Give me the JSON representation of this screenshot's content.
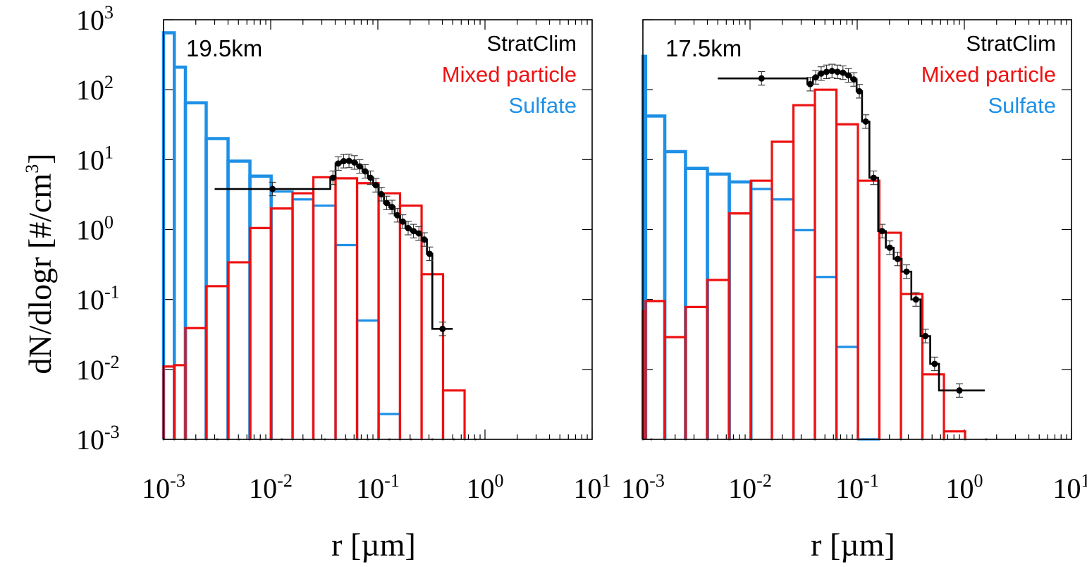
{
  "figure": {
    "ylabel": "dN/dlogr [#/cm",
    "ylabel_sup": "3",
    "ylabel_end": "]",
    "xlabel": "r [µm]",
    "y_ticks": [
      {
        "base": "10",
        "exp": "-3",
        "value": -3
      },
      {
        "base": "10",
        "exp": "-2",
        "value": -2
      },
      {
        "base": "10",
        "exp": "-1",
        "value": -1
      },
      {
        "base": "10",
        "exp": "0",
        "value": 0
      },
      {
        "base": "10",
        "exp": "1",
        "value": 1
      },
      {
        "base": "10",
        "exp": "2",
        "value": 2
      },
      {
        "base": "10",
        "exp": "3",
        "value": 3
      }
    ],
    "x_ticks": [
      {
        "base": "10",
        "exp": "-3",
        "value": -3
      },
      {
        "base": "10",
        "exp": "-2",
        "value": -2
      },
      {
        "base": "10",
        "exp": "-1",
        "value": -1
      },
      {
        "base": "10",
        "exp": "0",
        "value": 0
      },
      {
        "base": "10",
        "exp": "1",
        "value": 1
      }
    ],
    "colors": {
      "stratclim": "#000000",
      "mixed": "#ee1111",
      "sulfate": "#1e90e6"
    }
  },
  "chart_data": [
    {
      "type": "bar",
      "panel_label": "19.5km",
      "x_scale": "log",
      "y_scale": "log",
      "xlim": [
        0.001,
        10
      ],
      "ylim": [
        0.001,
        1000
      ],
      "legend_position": "top-right",
      "legend": [
        {
          "label": "StratClim",
          "color": "#000000"
        },
        {
          "label": "Mixed particle",
          "color": "#ee1111"
        },
        {
          "label": "Sulfate",
          "color": "#1e90e6"
        }
      ],
      "bin_edges": [
        0.001,
        0.00126,
        0.00159,
        0.002,
        0.00252,
        0.00317,
        0.004,
        0.00504,
        0.00635,
        0.008,
        0.01008,
        0.0127,
        0.016,
        0.02016,
        0.0254,
        0.032,
        0.0403,
        0.0508,
        0.064,
        0.0806,
        0.1016,
        0.128,
        0.1613,
        0.2032,
        0.256,
        0.3225,
        0.4064,
        0.512,
        0.645,
        0.8128
      ],
      "series": [
        {
          "name": "Sulfate",
          "style": "histogram",
          "edges": [
            0.001,
            0.00126,
            0.0016,
            0.0025,
            0.004,
            0.0064,
            0.0101,
            0.016,
            0.025,
            0.0403,
            0.064,
            0.1016,
            0.161
          ],
          "values": [
            650,
            210,
            65,
            20,
            9.5,
            5.8,
            3.5,
            2.7,
            2.2,
            0.6,
            0.05,
            0.0023
          ]
        },
        {
          "name": "Mixed particle",
          "style": "histogram",
          "edges": [
            0.001,
            0.00126,
            0.0016,
            0.0025,
            0.004,
            0.0064,
            0.0101,
            0.016,
            0.025,
            0.0403,
            0.064,
            0.1016,
            0.161,
            0.256,
            0.406,
            0.645
          ],
          "values": [
            0.011,
            0.0115,
            0.039,
            0.155,
            0.34,
            1.05,
            2.0,
            3.3,
            5.6,
            5.4,
            4.6,
            3.3,
            2.2,
            0.23,
            0.005
          ]
        },
        {
          "name": "StratClim",
          "style": "step-with-errorbars",
          "edges": [
            0.003,
            0.036,
            0.0403,
            0.0453,
            0.0508,
            0.057,
            0.064,
            0.0718,
            0.0806,
            0.0905,
            0.1016,
            0.114,
            0.128,
            0.1437,
            0.1613,
            0.181,
            0.2032,
            0.228,
            0.256,
            0.287,
            0.3225,
            0.5
          ],
          "centers": [
            0.0104,
            0.0381,
            0.0427,
            0.048,
            0.0538,
            0.0604,
            0.0678,
            0.0761,
            0.0854,
            0.0959,
            0.1076,
            0.1208,
            0.1356,
            0.1522,
            0.1709,
            0.1918,
            0.2152,
            0.2416,
            0.2712,
            0.3044,
            0.4016
          ],
          "values": [
            3.8,
            5.5,
            8.8,
            9.5,
            9.6,
            9.1,
            8.0,
            6.8,
            5.5,
            4.3,
            3.2,
            2.4,
            2.1,
            1.6,
            1.3,
            1.05,
            0.95,
            0.88,
            0.72,
            0.45,
            0.038
          ],
          "err_factor": 1.25
        }
      ]
    },
    {
      "type": "bar",
      "panel_label": "17.5km",
      "x_scale": "log",
      "y_scale": "log",
      "xlim": [
        0.001,
        10
      ],
      "ylim": [
        0.001,
        1000
      ],
      "legend_position": "top-right",
      "legend": [
        {
          "label": "StratClim",
          "color": "#000000"
        },
        {
          "label": "Mixed particle",
          "color": "#ee1111"
        },
        {
          "label": "Sulfate",
          "color": "#1e90e6"
        }
      ],
      "bin_edges": [
        0.001,
        0.0012,
        0.0016,
        0.0025,
        0.004,
        0.0064,
        0.0102,
        0.016,
        0.0254,
        0.0403,
        0.064,
        0.1016,
        0.161,
        0.256,
        0.406,
        0.645,
        1.016,
        1.6
      ],
      "series": [
        {
          "name": "Sulfate",
          "style": "histogram",
          "edges": [
            0.001,
            0.00106,
            0.0016,
            0.0025,
            0.004,
            0.0064,
            0.0102,
            0.016,
            0.0254,
            0.0403,
            0.064,
            0.1016,
            0.161
          ],
          "values": [
            300,
            42,
            13,
            7.5,
            6.2,
            4.8,
            3.8,
            2.7,
            0.98,
            0.21,
            0.021,
            0.001
          ]
        },
        {
          "name": "Mixed particle",
          "style": "histogram",
          "edges": [
            0.001,
            0.00106,
            0.0016,
            0.0025,
            0.004,
            0.0064,
            0.0102,
            0.016,
            0.0254,
            0.0403,
            0.064,
            0.1016,
            0.161,
            0.256,
            0.406,
            0.645,
            1.016
          ],
          "values": [
            0.067,
            0.095,
            0.029,
            0.078,
            0.19,
            1.7,
            5.0,
            18,
            60,
            100,
            32,
            5.0,
            0.9,
            0.12,
            0.0085,
            0.0013
          ]
        },
        {
          "name": "StratClim",
          "style": "step-with-errorbars",
          "edges": [
            0.005,
            0.0343,
            0.0386,
            0.0434,
            0.0488,
            0.0549,
            0.0617,
            0.0694,
            0.0781,
            0.0878,
            0.0988,
            0.111,
            0.13,
            0.157,
            0.185,
            0.219,
            0.26,
            0.32,
            0.39,
            0.48,
            0.58,
            1.55
          ],
          "centers": [
            0.0128,
            0.0364,
            0.041,
            0.0461,
            0.0518,
            0.0582,
            0.0654,
            0.0736,
            0.0828,
            0.0931,
            0.1047,
            0.1201,
            0.1425,
            0.1707,
            0.2013,
            0.2388,
            0.2887,
            0.3533,
            0.4327,
            0.5283,
            0.9
          ],
          "values": [
            145,
            120,
            150,
            170,
            180,
            185,
            180,
            175,
            160,
            140,
            95,
            35,
            5.5,
            0.95,
            0.55,
            0.38,
            0.25,
            0.1,
            0.03,
            0.012,
            0.005
          ],
          "err_factor": 1.25
        }
      ]
    }
  ]
}
